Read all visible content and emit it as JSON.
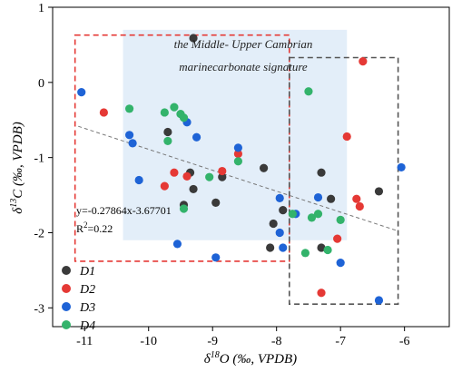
{
  "chart_data": {
    "type": "scatter",
    "xlim": [
      -11.5,
      -5.3
    ],
    "ylim": [
      -3.25,
      1
    ],
    "x_ticks": [
      "-11",
      "-10",
      "-9",
      "-8",
      "-7",
      "-6"
    ],
    "y_ticks": [
      "1",
      "0",
      "-1",
      "-2",
      "-3"
    ],
    "x_tick_values": [
      -11,
      -10,
      -9,
      -8,
      -7,
      -6
    ],
    "y_tick_values": [
      1,
      0,
      -1,
      -2,
      -3
    ],
    "xlabel": {
      "pre": "δ",
      "sup": "18",
      "post": "O (‰, VPDB)"
    },
    "ylabel": {
      "pre": "δ",
      "sup": "13",
      "post": "C (‰, VPDB)"
    },
    "annotation": {
      "line1": "the Middle- Upper Cambrian",
      "line2": "marinecarbonate signature",
      "shaded_region": {
        "x": [
          -10.4,
          -6.9
        ],
        "y": [
          -2.1,
          0.7
        ],
        "color": "#e3eef9"
      }
    },
    "boxes": [
      {
        "name": "red-dashed-box",
        "x": [
          -11.15,
          -7.8
        ],
        "y": [
          -2.38,
          0.63
        ],
        "color": "#e53935"
      },
      {
        "name": "gray-dashed-box",
        "x": [
          -7.8,
          -6.1
        ],
        "y": [
          -2.95,
          0.33
        ],
        "color": "#555555"
      }
    ],
    "trendline": {
      "slope": -0.27864,
      "intercept": -3.67701,
      "x_range": [
        -11.1,
        -6.1
      ],
      "color": "#777777"
    },
    "equation": "y=-0.27864x-3.67701",
    "r2": {
      "pre": "R",
      "sup": "2",
      "post": "=0.22"
    },
    "legend_position": "bottom-left",
    "series": [
      {
        "name": "D1",
        "color": "#3a3a3a",
        "points": [
          [
            -9.3,
            0.59
          ],
          [
            -9.7,
            -0.66
          ],
          [
            -9.35,
            -1.2
          ],
          [
            -9.3,
            -1.42
          ],
          [
            -9.45,
            -1.63
          ],
          [
            -8.95,
            -1.6
          ],
          [
            -8.85,
            -1.26
          ],
          [
            -8.2,
            -1.14
          ],
          [
            -8.05,
            -1.88
          ],
          [
            -7.9,
            -1.7
          ],
          [
            -7.3,
            -1.2
          ],
          [
            -7.15,
            -1.55
          ],
          [
            -7.3,
            -2.2
          ],
          [
            -8.1,
            -2.2
          ],
          [
            -6.4,
            -1.45
          ]
        ]
      },
      {
        "name": "D2",
        "color": "#e53935",
        "points": [
          [
            -10.7,
            -0.4
          ],
          [
            -9.6,
            -1.2
          ],
          [
            -9.75,
            -1.38
          ],
          [
            -9.4,
            -1.25
          ],
          [
            -8.85,
            -1.18
          ],
          [
            -8.6,
            -0.95
          ],
          [
            -6.9,
            -0.72
          ],
          [
            -6.75,
            -1.55
          ],
          [
            -6.7,
            -1.65
          ],
          [
            -7.05,
            -2.08
          ],
          [
            -7.3,
            -2.8
          ],
          [
            -6.65,
            0.28
          ]
        ]
      },
      {
        "name": "D3",
        "color": "#1e63d6",
        "points": [
          [
            -11.05,
            -0.13
          ],
          [
            -10.3,
            -0.7
          ],
          [
            -10.25,
            -0.81
          ],
          [
            -10.15,
            -1.3
          ],
          [
            -9.4,
            -0.53
          ],
          [
            -9.25,
            -0.73
          ],
          [
            -8.6,
            -0.87
          ],
          [
            -7.95,
            -1.54
          ],
          [
            -7.95,
            -2.0
          ],
          [
            -7.7,
            -1.75
          ],
          [
            -7.35,
            -1.53
          ],
          [
            -7.0,
            -2.4
          ],
          [
            -6.4,
            -2.9
          ],
          [
            -6.05,
            -1.13
          ],
          [
            -9.55,
            -2.15
          ],
          [
            -8.95,
            -2.33
          ],
          [
            -7.9,
            -2.2
          ]
        ]
      },
      {
        "name": "D4",
        "color": "#33b36b",
        "points": [
          [
            -10.3,
            -0.35
          ],
          [
            -9.75,
            -0.4
          ],
          [
            -9.6,
            -0.33
          ],
          [
            -9.5,
            -0.42
          ],
          [
            -9.45,
            -0.47
          ],
          [
            -9.7,
            -0.78
          ],
          [
            -9.05,
            -1.26
          ],
          [
            -8.6,
            -1.05
          ],
          [
            -9.45,
            -1.68
          ],
          [
            -7.75,
            -1.75
          ],
          [
            -7.55,
            -2.27
          ],
          [
            -7.5,
            -0.12
          ],
          [
            -7.45,
            -1.8
          ],
          [
            -7.35,
            -1.75
          ],
          [
            -7.2,
            -2.23
          ],
          [
            -7.0,
            -1.83
          ]
        ]
      }
    ]
  }
}
